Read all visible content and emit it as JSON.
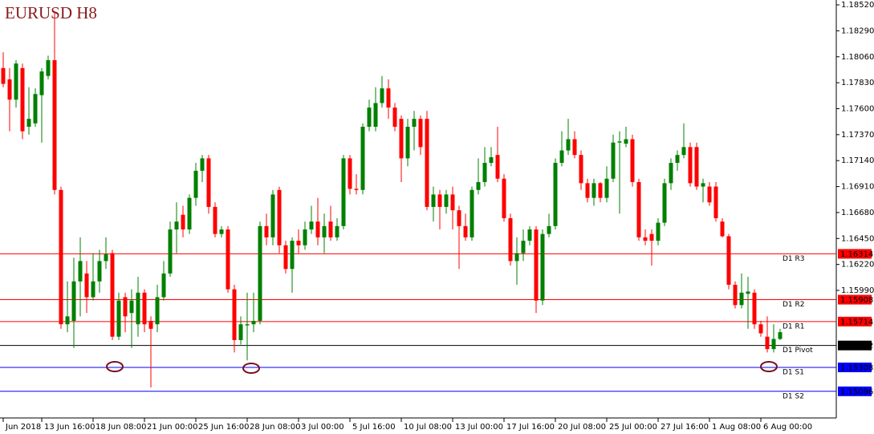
{
  "chart_data": {
    "type": "candlestick",
    "title": "EURUSD H8",
    "up_color": "#008000",
    "down_color": "#ff0000",
    "ylim": [
      1.1486,
      1.18563
    ],
    "yticks": [
      {
        "value": 1.1852,
        "label": "1.18520"
      },
      {
        "value": 1.1829,
        "label": "1.18290"
      },
      {
        "value": 1.1806,
        "label": "1.18060"
      },
      {
        "value": 1.1783,
        "label": "1.17830"
      },
      {
        "value": 1.176,
        "label": "1.17600"
      },
      {
        "value": 1.1737,
        "label": "1.17370"
      },
      {
        "value": 1.1714,
        "label": "1.17140"
      },
      {
        "value": 1.1691,
        "label": "1.16910"
      },
      {
        "value": 1.1668,
        "label": "1.16680"
      },
      {
        "value": 1.1645,
        "label": "1.16450"
      },
      {
        "value": 1.1622,
        "label": "1.16220"
      },
      {
        "value": 1.1599,
        "label": "1.15990"
      }
    ],
    "xticks": [
      {
        "value": 0,
        "label": "Jun 2018"
      },
      {
        "value": 6,
        "label": "13 Jun 16:00"
      },
      {
        "value": 14,
        "label": "18 Jun 08:00"
      },
      {
        "value": 22,
        "label": "21 Jun 00:00"
      },
      {
        "value": 30,
        "label": "25 Jun 16:00"
      },
      {
        "value": 38,
        "label": "28 Jun 08:00"
      },
      {
        "value": 46,
        "label": "3 Jul 00:00"
      },
      {
        "value": 54,
        "label": "5 Jul 16:00"
      },
      {
        "value": 62,
        "label": "10 Jul 08:00"
      },
      {
        "value": 70,
        "label": "13 Jul 00:00"
      },
      {
        "value": 78,
        "label": "17 Jul 16:00"
      },
      {
        "value": 86,
        "label": "20 Jul 08:00"
      },
      {
        "value": 94,
        "label": "25 Jul 00:00"
      },
      {
        "value": 102,
        "label": "27 Jul 16:00"
      },
      {
        "value": 110,
        "label": "1 Aug 08:00"
      },
      {
        "value": 118,
        "label": "6 Aug 00:00"
      }
    ],
    "levels": [
      {
        "name": "D1 R3",
        "value": 1.16314,
        "color": "#ff0000"
      },
      {
        "name": "D1 R2",
        "value": 1.15908,
        "color": "#ff0000"
      },
      {
        "name": "D1 R1",
        "value": 1.15714,
        "color": "#ff0000"
      },
      {
        "name": "D1 Pivot",
        "value": 1.15502,
        "color": "#000000"
      },
      {
        "name": "D1 S1",
        "value": 1.15308,
        "color": "#0000ff"
      },
      {
        "name": "D1 S2",
        "value": 1.15096,
        "color": "#0000ff"
      }
    ],
    "open": [
      1.1796,
      1.1786,
      1.1768,
      1.1796,
      1.1744,
      1.1747,
      1.1772,
      1.1789,
      1.1803,
      1.1688,
      1.1569,
      1.1572,
      1.1607,
      1.1614,
      1.1593,
      1.1607,
      1.1625,
      1.1632,
      1.1558,
      1.1593,
      1.1579,
      1.1569,
      1.1597,
      1.1572,
      1.1569,
      1.1593,
      1.1614,
      1.1653,
      1.1666,
      1.1653,
      1.1681,
      1.1705,
      1.1716,
      1.1673,
      1.1649,
      1.1653,
      1.16,
      1.1555,
      1.1568,
      1.1569,
      1.1572,
      1.1656,
      1.1646,
      1.1688,
      1.1639,
      1.1618,
      1.1643,
      1.1639,
      1.1653,
      1.166,
      1.1646,
      1.166,
      1.1646,
      1.1656,
      1.1716,
      1.1689,
      1.1688,
      1.1744,
      1.1744,
      1.1765,
      1.1778,
      1.1761,
      1.1751,
      1.1716,
      1.1744,
      1.1751,
      1.1751,
      1.1673,
      1.1684,
      1.1673,
      1.1684,
      1.167,
      1.1656,
      1.1646,
      1.1688,
      1.1695,
      1.1712,
      1.1719,
      1.1698,
      1.1663,
      1.1625,
      1.1632,
      1.1643,
      1.1653,
      1.159,
      1.1649,
      1.1656,
      1.1712,
      1.1723,
      1.1733,
      1.1719,
      1.1694,
      1.1681,
      1.1694,
      1.1681,
      1.1698,
      1.173,
      1.1729,
      1.1733,
      1.1695,
      1.1646,
      1.1649,
      1.1643,
      1.1659,
      1.1694,
      1.1712,
      1.1719,
      1.1726,
      1.1726,
      1.1691,
      1.1691,
      1.1691,
      1.166,
      1.1647,
      1.1604,
      1.1586,
      1.1596,
      1.1597,
      1.1569,
      1.1558,
      1.1547,
      1.1556
    ],
    "high": [
      1.181,
      1.1796,
      1.1803,
      1.18,
      1.1779,
      1.1778,
      1.1796,
      1.1807,
      1.1845,
      1.1691,
      1.1607,
      1.1628,
      1.1646,
      1.1625,
      1.1632,
      1.1635,
      1.1646,
      1.1635,
      1.1597,
      1.1597,
      1.16,
      1.1611,
      1.16,
      1.1576,
      1.1604,
      1.1625,
      1.166,
      1.1677,
      1.1674,
      1.1684,
      1.1712,
      1.1719,
      1.1719,
      1.1677,
      1.1656,
      1.1656,
      1.1604,
      1.1576,
      1.1597,
      1.1597,
      1.166,
      1.1667,
      1.1688,
      1.1691,
      1.1643,
      1.1646,
      1.1653,
      1.166,
      1.1674,
      1.1681,
      1.1667,
      1.1674,
      1.1663,
      1.1719,
      1.1719,
      1.1702,
      1.1747,
      1.1768,
      1.1779,
      1.1789,
      1.1786,
      1.1765,
      1.1754,
      1.1751,
      1.1758,
      1.1754,
      1.1758,
      1.1691,
      1.1688,
      1.1688,
      1.1691,
      1.1674,
      1.1667,
      1.1691,
      1.1716,
      1.1726,
      1.1726,
      1.1744,
      1.1702,
      1.1667,
      1.1646,
      1.1653,
      1.1656,
      1.1656,
      1.1653,
      1.1667,
      1.1716,
      1.174,
      1.1751,
      1.174,
      1.1723,
      1.1698,
      1.1698,
      1.1695,
      1.1709,
      1.1737,
      1.174,
      1.1744,
      1.1737,
      1.1698,
      1.1653,
      1.1653,
      1.1663,
      1.1698,
      1.1716,
      1.1723,
      1.1747,
      1.173,
      1.173,
      1.1698,
      1.1695,
      1.1695,
      1.1663,
      1.1649,
      1.1607,
      1.1614,
      1.1611,
      1.16,
      1.1572,
      1.1576,
      1.1569,
      1.1565
    ],
    "low": [
      1.1779,
      1.174,
      1.1761,
      1.1733,
      1.1737,
      1.1744,
      1.173,
      1.1786,
      1.1684,
      1.1565,
      1.1562,
      1.1548,
      1.1576,
      1.1579,
      1.159,
      1.1597,
      1.1618,
      1.1555,
      1.1555,
      1.1562,
      1.1548,
      1.1558,
      1.1562,
      1.1513,
      1.1562,
      1.159,
      1.1611,
      1.1632,
      1.1646,
      1.1649,
      1.1674,
      1.1695,
      1.1667,
      1.1646,
      1.1646,
      1.1597,
      1.1544,
      1.1551,
      1.1537,
      1.1562,
      1.1569,
      1.1639,
      1.1639,
      1.1632,
      1.1614,
      1.1597,
      1.1632,
      1.1635,
      1.1649,
      1.1639,
      1.1632,
      1.1643,
      1.1643,
      1.1653,
      1.1684,
      1.1684,
      1.1684,
      1.174,
      1.174,
      1.1761,
      1.1751,
      1.174,
      1.1695,
      1.1709,
      1.1723,
      1.1719,
      1.167,
      1.166,
      1.1653,
      1.1667,
      1.1653,
      1.1618,
      1.1643,
      1.1643,
      1.1684,
      1.1691,
      1.1709,
      1.1695,
      1.166,
      1.1621,
      1.1604,
      1.1625,
      1.1639,
      1.1579,
      1.1586,
      1.1646,
      1.1653,
      1.1709,
      1.1719,
      1.1716,
      1.1688,
      1.1677,
      1.1674,
      1.1677,
      1.1677,
      1.1695,
      1.1667,
      1.1726,
      1.1691,
      1.1643,
      1.1639,
      1.1621,
      1.1639,
      1.1656,
      1.1688,
      1.1705,
      1.1716,
      1.1691,
      1.1688,
      1.1677,
      1.1674,
      1.166,
      1.1646,
      1.16,
      1.1583,
      1.1583,
      1.1565,
      1.1565,
      1.1558,
      1.1544,
      1.1544,
      1.1555
    ],
    "close": [
      1.1782,
      1.1768,
      1.18,
      1.174,
      1.1751,
      1.1773,
      1.1793,
      1.1803,
      1.1688,
      1.1569,
      1.1576,
      1.1607,
      1.1625,
      1.1593,
      1.1607,
      1.1625,
      1.1631,
      1.1558,
      1.159,
      1.1576,
      1.159,
      1.1597,
      1.1569,
      1.1565,
      1.1593,
      1.1614,
      1.1653,
      1.166,
      1.1653,
      1.1681,
      1.1705,
      1.1716,
      1.1673,
      1.1649,
      1.1653,
      1.16,
      1.1555,
      1.1569,
      1.1569,
      1.1572,
      1.1656,
      1.1646,
      1.1684,
      1.1639,
      1.1618,
      1.1643,
      1.1639,
      1.1653,
      1.166,
      1.1646,
      1.1656,
      1.1646,
      1.1656,
      1.1716,
      1.1689,
      1.1688,
      1.1744,
      1.1761,
      1.1765,
      1.1778,
      1.1761,
      1.1744,
      1.1716,
      1.1744,
      1.1751,
      1.1726,
      1.1673,
      1.1684,
      1.1673,
      1.1684,
      1.167,
      1.1656,
      1.1646,
      1.1688,
      1.1695,
      1.1712,
      1.1717,
      1.1698,
      1.1663,
      1.1625,
      1.1632,
      1.1643,
      1.1653,
      1.159,
      1.1649,
      1.1656,
      1.1712,
      1.1723,
      1.1733,
      1.1719,
      1.1694,
      1.1681,
      1.1694,
      1.1681,
      1.1698,
      1.173,
      1.1731,
      1.1733,
      1.1695,
      1.1646,
      1.1643,
      1.1643,
      1.1659,
      1.1694,
      1.1712,
      1.1719,
      1.1726,
      1.1694,
      1.1691,
      1.1694,
      1.1677,
      1.1663,
      1.1647,
      1.1604,
      1.1586,
      1.1597,
      1.1598,
      1.1569,
      1.1561,
      1.1547,
      1.1556,
      1.1562
    ]
  }
}
